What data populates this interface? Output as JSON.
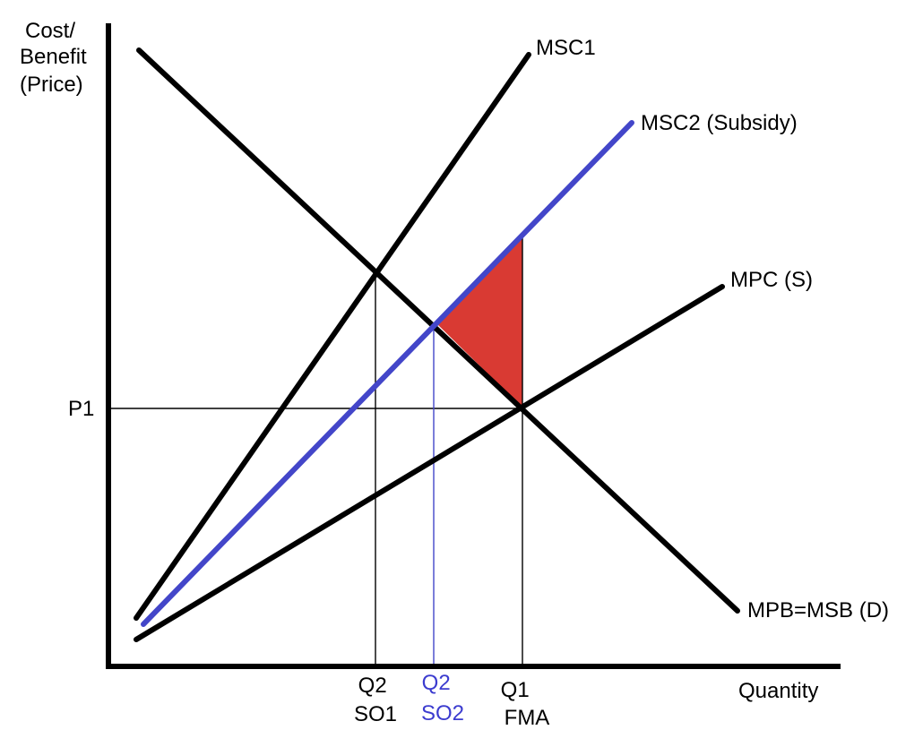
{
  "axes": {
    "y_label_lines": [
      "Cost/",
      "Benefit",
      "(Price)"
    ],
    "x_label": "Quantity"
  },
  "price_label": "P1",
  "curves": {
    "msc1": "MSC1",
    "msc2": "MSC2 (Subsidy)",
    "mpc": "MPC (S)",
    "demand": "MPB=MSB (D)"
  },
  "quantity_markers": {
    "so1": [
      "Q2",
      "SO1"
    ],
    "so2": [
      "Q2",
      "SO2"
    ],
    "fma": [
      "Q1",
      "FMA"
    ]
  },
  "colors": {
    "curve": "#000000",
    "subsidy_curve": "#4346c9",
    "deadweight_triangle": "#d93a33",
    "so2_text": "#3c3ccf"
  }
}
